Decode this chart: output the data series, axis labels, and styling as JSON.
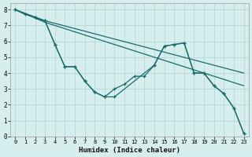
{
  "xlabel": "Humidex (Indice chaleur)",
  "xlim": [
    -0.5,
    23.5
  ],
  "ylim": [
    0,
    8.4
  ],
  "bg_color": "#d6eeee",
  "grid_color": "#b8d8d8",
  "line_color": "#1a6b6b",
  "series": [
    {
      "x": [
        0,
        1,
        2,
        3,
        4,
        5,
        6,
        7,
        8,
        9,
        10,
        11,
        12,
        13,
        14,
        15,
        16,
        17,
        18,
        19,
        20,
        21,
        22,
        23
      ],
      "y": [
        8,
        7.7,
        7.5,
        7.3,
        5.8,
        4.4,
        4.4,
        3.5,
        2.8,
        2.5,
        3.0,
        3.3,
        3.8,
        3.8,
        4.5,
        5.7,
        5.8,
        5.9,
        4.0,
        4.0,
        3.2,
        2.7,
        1.8,
        0.2
      ]
    },
    {
      "x": [
        0,
        2,
        3,
        4,
        5,
        6,
        7,
        8,
        9,
        10,
        14,
        15,
        16,
        17,
        18,
        19,
        20,
        21,
        22,
        23
      ],
      "y": [
        8,
        7.5,
        7.3,
        5.8,
        4.4,
        4.4,
        3.5,
        2.8,
        2.5,
        2.5,
        4.5,
        5.7,
        5.8,
        5.9,
        4.0,
        4.0,
        3.2,
        2.7,
        1.8,
        0.2
      ]
    },
    {
      "x": [
        0,
        3,
        23
      ],
      "y": [
        8,
        7.3,
        4.0
      ]
    },
    {
      "x": [
        0,
        3,
        23
      ],
      "y": [
        8,
        7.2,
        3.2
      ]
    }
  ]
}
